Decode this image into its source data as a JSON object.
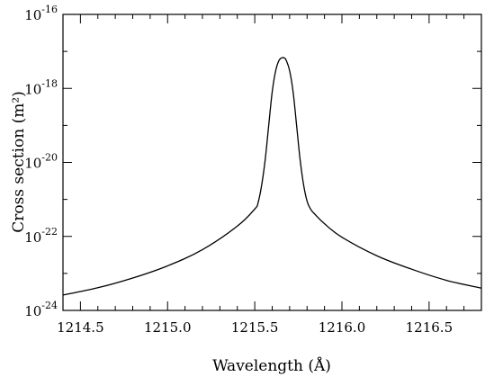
{
  "chart_data": {
    "type": "line",
    "title": "",
    "xlabel": "Wavelength (Å)",
    "ylabel": "Cross section (m²)",
    "xlim": [
      1214.4,
      1216.8
    ],
    "ylim": [
      1e-24,
      1e-16
    ],
    "yscale": "log",
    "grid": false,
    "x_ticks": [
      1214.5,
      1215.0,
      1215.5,
      1216.0,
      1216.5
    ],
    "x_tick_labels": [
      "1214.5",
      "1215.0",
      "1215.5",
      "1216.0",
      "1216.5"
    ],
    "y_tick_labels": [
      {
        "base": "10",
        "exp": "-16",
        "value": 1e-16
      },
      {
        "base": "10",
        "exp": "-18",
        "value": 1e-18
      },
      {
        "base": "10",
        "exp": "-20",
        "value": 1e-20
      },
      {
        "base": "10",
        "exp": "-22",
        "value": 1e-22
      },
      {
        "base": "10",
        "exp": "-24",
        "value": 1e-24
      }
    ],
    "series": [
      {
        "x": [
          1214.4,
          1214.6,
          1214.8,
          1215.0,
          1215.2,
          1215.4,
          1215.5,
          1215.52,
          1215.54,
          1215.56,
          1215.58,
          1215.6,
          1215.62,
          1215.64,
          1215.66,
          1215.67,
          1215.68,
          1215.7,
          1215.72,
          1215.74,
          1215.76,
          1215.78,
          1215.8,
          1215.82,
          1215.84,
          1215.9,
          1216.0,
          1216.2,
          1216.4,
          1216.6,
          1216.8
        ],
        "y": [
          2.6e-24,
          4.1e-24,
          7.5e-24,
          1.6e-23,
          4.4e-23,
          1.9e-22,
          5.5e-22,
          8.5e-22,
          2.5e-21,
          1.2e-20,
          1e-19,
          8e-19,
          3e-18,
          5.8e-18,
          6.8e-18,
          6.6e-18,
          5.8e-18,
          3e-18,
          8e-19,
          1e-19,
          1.2e-20,
          2.5e-21,
          9e-22,
          5.5e-22,
          4.2e-22,
          2.2e-22,
          9.5e-23,
          3e-23,
          1.3e-23,
          6.5e-24,
          4e-24
        ]
      }
    ]
  }
}
